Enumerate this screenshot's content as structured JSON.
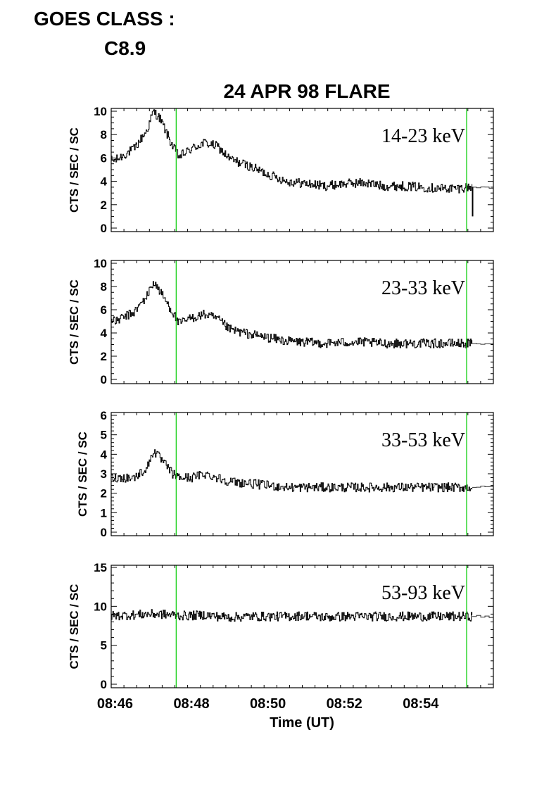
{
  "header": {
    "goes_label": "GOES CLASS :",
    "goes_value": "C8.9"
  },
  "colors": {
    "trace": "#000000",
    "marker": "#00cc00",
    "axis": "#000000",
    "background": "#ffffff"
  },
  "chart_data": {
    "type": "line",
    "title": "24 APR 98 FLARE",
    "xlabel": "Time (UT)",
    "x_ticks": [
      "08:46",
      "08:48",
      "08:50",
      "08:52",
      "08:54"
    ],
    "xlim": [
      "08:45:54",
      "08:55:54"
    ],
    "markers": [
      "08:47:36",
      "08:55:12"
    ],
    "grid": false,
    "panels": [
      {
        "label": "14-23 keV",
        "ylabel": "CTS / SEC / SC",
        "ylim": [
          0,
          10
        ],
        "y_ticks": [
          "0",
          "2",
          "4",
          "6",
          "8",
          "10"
        ],
        "x": [
          "08:46:00",
          "08:46:30",
          "08:46:50",
          "08:47:00",
          "08:47:10",
          "08:47:30",
          "08:47:40",
          "08:48:00",
          "08:48:20",
          "08:48:40",
          "08:49:00",
          "08:49:30",
          "08:50:00",
          "08:50:30",
          "08:51:00",
          "08:51:30",
          "08:52:00",
          "08:52:30",
          "08:53:00",
          "08:53:30",
          "08:54:00",
          "08:54:30",
          "08:55:00",
          "08:55:10"
        ],
        "values": [
          5.8,
          6.8,
          8.4,
          10,
          9.4,
          7.0,
          6.1,
          6.8,
          7.3,
          7.0,
          5.9,
          5.3,
          4.6,
          4.0,
          3.8,
          3.6,
          3.8,
          3.9,
          3.6,
          3.6,
          3.5,
          3.4,
          3.4,
          3.5
        ]
      },
      {
        "label": "23-33 keV",
        "ylabel": "CTS / SEC / SC",
        "ylim": [
          0,
          10
        ],
        "y_ticks": [
          "0",
          "2",
          "4",
          "6",
          "8",
          "10"
        ],
        "x": [
          "08:46:00",
          "08:46:30",
          "08:46:50",
          "08:47:00",
          "08:47:10",
          "08:47:30",
          "08:47:40",
          "08:48:00",
          "08:48:20",
          "08:48:40",
          "08:49:00",
          "08:49:30",
          "08:50:00",
          "08:50:30",
          "08:51:00",
          "08:51:30",
          "08:52:00",
          "08:52:30",
          "08:53:00",
          "08:53:30",
          "08:54:00",
          "08:54:30",
          "08:55:00",
          "08:55:10"
        ],
        "values": [
          5.0,
          5.8,
          7.2,
          8.4,
          7.6,
          5.8,
          4.8,
          5.3,
          5.6,
          5.2,
          4.3,
          3.9,
          3.6,
          3.3,
          3.2,
          3.1,
          3.2,
          3.2,
          3.1,
          3.1,
          3.1,
          3.1,
          3.1,
          3.1
        ]
      },
      {
        "label": "33-53 keV",
        "ylabel": "CTS / SEC / SC",
        "ylim": [
          0,
          6
        ],
        "y_ticks": [
          "0",
          "1",
          "2",
          "3",
          "4",
          "5",
          "6"
        ],
        "x": [
          "08:46:00",
          "08:46:30",
          "08:46:50",
          "08:47:00",
          "08:47:10",
          "08:47:30",
          "08:47:40",
          "08:48:00",
          "08:48:20",
          "08:48:40",
          "08:49:00",
          "08:49:30",
          "08:50:00",
          "08:50:30",
          "08:51:00",
          "08:51:30",
          "08:52:00",
          "08:52:30",
          "08:53:00",
          "08:53:30",
          "08:54:00",
          "08:54:30",
          "08:55:00",
          "08:55:10"
        ],
        "values": [
          2.8,
          2.8,
          3.3,
          4.2,
          3.8,
          3.0,
          2.8,
          2.8,
          3.0,
          2.8,
          2.6,
          2.5,
          2.4,
          2.3,
          2.3,
          2.3,
          2.3,
          2.3,
          2.3,
          2.3,
          2.3,
          2.3,
          2.3,
          2.3
        ]
      },
      {
        "label": "53-93 keV",
        "ylabel": "CTS / SEC / SC",
        "ylim": [
          0,
          15
        ],
        "y_ticks": [
          "0",
          "5",
          "10",
          "15"
        ],
        "x": [
          "08:46:00",
          "08:46:30",
          "08:46:50",
          "08:47:00",
          "08:47:10",
          "08:47:30",
          "08:47:40",
          "08:48:00",
          "08:48:20",
          "08:48:40",
          "08:49:00",
          "08:49:30",
          "08:50:00",
          "08:50:30",
          "08:51:00",
          "08:51:30",
          "08:52:00",
          "08:52:30",
          "08:53:00",
          "08:53:30",
          "08:54:00",
          "08:54:30",
          "08:55:00",
          "08:55:10"
        ],
        "values": [
          8.8,
          8.9,
          9.0,
          9.0,
          9.0,
          8.9,
          8.8,
          8.8,
          8.9,
          8.7,
          8.6,
          8.7,
          8.7,
          8.7,
          8.8,
          8.6,
          8.7,
          8.7,
          8.7,
          8.7,
          8.7,
          8.7,
          8.7,
          8.7
        ]
      }
    ]
  }
}
